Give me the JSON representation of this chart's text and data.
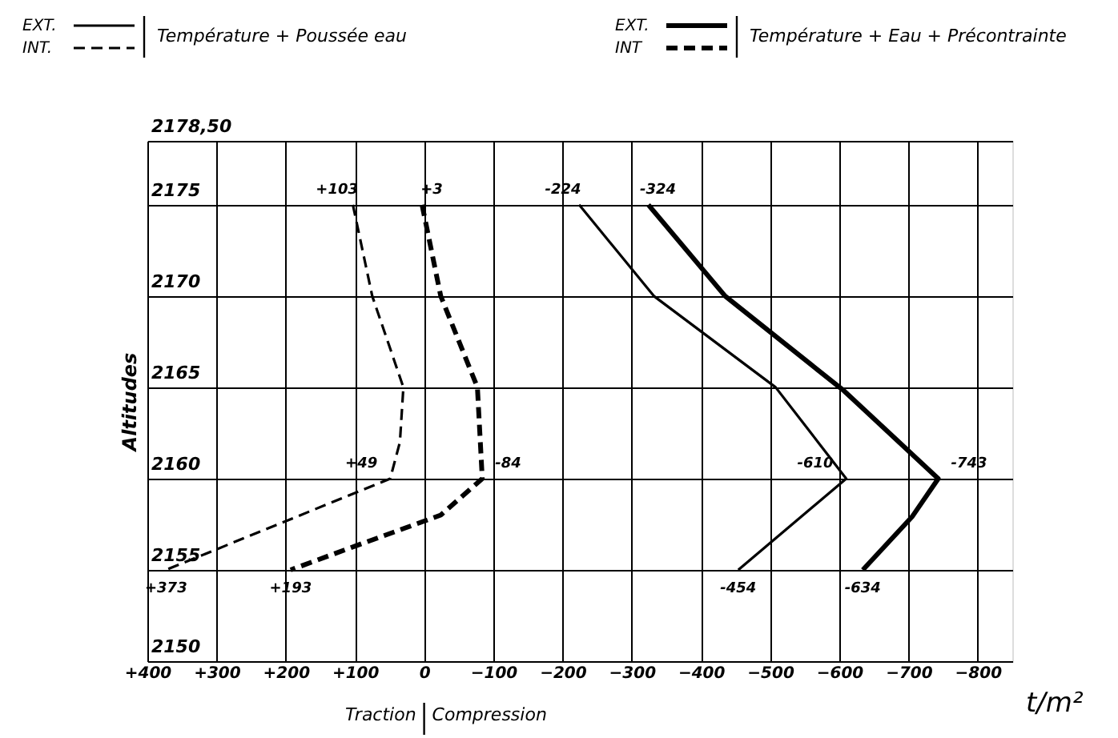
{
  "chart_data": {
    "type": "line",
    "xlabel": "t/m²",
    "ylabel": "Altitudes",
    "xlim": [
      400,
      -850
    ],
    "ylim": [
      2150,
      2178.5
    ],
    "xticks": [
      {
        "value": 400,
        "label": "+400"
      },
      {
        "value": 300,
        "label": "+300"
      },
      {
        "value": 200,
        "label": "+200"
      },
      {
        "value": 100,
        "label": "+100"
      },
      0,
      -100,
      -200,
      -300,
      -400,
      -500,
      -600,
      -700,
      -800
    ],
    "yticks": [
      2150,
      2155,
      2160,
      2165,
      2170,
      2175,
      {
        "value": 2178.5,
        "label": "2178,50"
      }
    ],
    "grid": true,
    "legend": "top",
    "marker": "none",
    "annotations": [
      "Température + Poussée eau",
      "Température + Eau + Précontrainte",
      "Traction",
      "Compression",
      {
        "text": "+103",
        "x": 103,
        "y": 2175
      },
      {
        "text": "+3",
        "x": 3,
        "y": 2175
      },
      {
        "text": "-224",
        "x": -224,
        "y": 2175
      },
      {
        "text": "-324",
        "x": -324,
        "y": 2175
      },
      {
        "text": "+49",
        "x": 49,
        "y": 2160
      },
      {
        "text": "-84",
        "x": -84,
        "y": 2160
      },
      {
        "text": "-610",
        "x": -610,
        "y": 2160
      },
      {
        "text": "-743",
        "x": -743,
        "y": 2160
      },
      {
        "text": "+373",
        "x": 373,
        "y": 2155
      },
      {
        "text": "+193",
        "x": 193,
        "y": 2155
      },
      {
        "text": "-454",
        "x": -454,
        "y": 2155
      },
      {
        "text": "-634",
        "x": -634,
        "y": 2155
      }
    ],
    "series": [
      {
        "name": "EXT.",
        "color": "#000000",
        "line_style": "solid",
        "x": [
          -224,
          -332,
          -508,
          -610,
          -454
        ],
        "values": [
          2175,
          2170,
          2165,
          2160,
          2155
        ]
      },
      {
        "name": "INT.",
        "color": "#000000",
        "line_style": "dashed",
        "x": [
          103,
          75,
          30,
          35,
          49,
          373
        ],
        "values": [
          2175,
          2170,
          2165,
          2162,
          2160,
          2155
        ]
      },
      {
        "name": "EXT.",
        "color": "#000000",
        "line_style": "solid",
        "x": [
          -324,
          -435,
          -607,
          -743,
          -705,
          -634
        ],
        "values": [
          2175,
          2170,
          2164.8,
          2160,
          2157.9,
          2155
        ]
      },
      {
        "name": "INT",
        "color": "#000000",
        "line_style": "dashed",
        "x": [
          3,
          -24,
          -77,
          -84,
          -24,
          100,
          193
        ],
        "values": [
          2175,
          2170,
          2165,
          2160,
          2158,
          2156.3,
          2155
        ]
      }
    ]
  }
}
